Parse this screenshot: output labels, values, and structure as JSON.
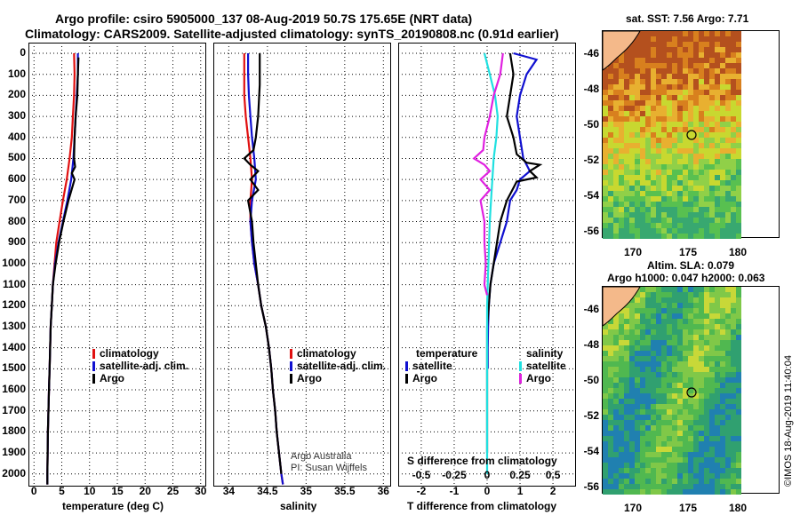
{
  "header": {
    "line1": "Argo profile: csiro 5905000_137 08-Aug-2019 50.7S 175.65E (NRT data)",
    "line2": "Climatology: CARS2009. Satellite-adjusted climatology: synTS_20190808.nc (0.91d earlier)"
  },
  "colors": {
    "climatology": "#e01010",
    "satellite": "#1010d0",
    "argo": "#000000",
    "satellite_s": "#20e0e0",
    "argo_s": "#e020e0"
  },
  "legend_common": [
    "climatology",
    "satellite-adj. clim.",
    "Argo"
  ],
  "legend_diff": {
    "temp_title": "temperature",
    "sal_title": "salinity",
    "temp_items": [
      "satellite",
      "Argo"
    ],
    "sal_items": [
      "satellite",
      "Argo"
    ]
  },
  "credit": {
    "line1": "Argo Australia",
    "line2": "PI: Susan Wijffels"
  },
  "diff_top_label": "S difference from climatology",
  "stamp": "©IMOS 18-Aug-2019 11:40:04",
  "maps": {
    "sst_title": "sat. SST: 7.56 Argo: 7.71",
    "sla_title1": "Altim. SLA: 0.079",
    "sla_title2": "Argo h1000: 0.047 h2000: 0.063",
    "lat_ticks": [
      "-46",
      "-48",
      "-50",
      "-52",
      "-54",
      "-56"
    ],
    "lon_ticks": [
      "170",
      "175",
      "180"
    ]
  },
  "chart_data": [
    {
      "type": "line",
      "title": "",
      "xlabel": "temperature (deg C)",
      "ylabel": "",
      "xlim": [
        -1,
        31
      ],
      "ylim": [
        2060,
        0
      ],
      "x_ticks": [
        0,
        5,
        10,
        15,
        20,
        25,
        30
      ],
      "y_ticks": [
        0,
        100,
        200,
        300,
        400,
        500,
        600,
        700,
        800,
        900,
        1000,
        1100,
        1200,
        1300,
        1400,
        1500,
        1600,
        1700,
        1800,
        1900,
        2000
      ],
      "series": [
        {
          "name": "climatology",
          "points": [
            [
              7.2,
              0
            ],
            [
              7.3,
              100
            ],
            [
              7.2,
              200
            ],
            [
              7.0,
              300
            ],
            [
              6.8,
              400
            ],
            [
              6.4,
              500
            ],
            [
              5.9,
              600
            ],
            [
              5.2,
              700
            ],
            [
              4.6,
              800
            ],
            [
              4.0,
              900
            ],
            [
              3.7,
              1000
            ],
            [
              3.4,
              1100
            ],
            [
              3.2,
              1200
            ],
            [
              3.0,
              1300
            ],
            [
              2.9,
              1400
            ],
            [
              2.8,
              1500
            ],
            [
              2.7,
              1600
            ],
            [
              2.6,
              1700
            ],
            [
              2.5,
              1800
            ],
            [
              2.45,
              1900
            ],
            [
              2.4,
              2000
            ],
            [
              2.4,
              2050
            ]
          ]
        },
        {
          "name": "satellite-adj. clim.",
          "points": [
            [
              7.9,
              0
            ],
            [
              7.9,
              100
            ],
            [
              7.7,
              200
            ],
            [
              7.5,
              300
            ],
            [
              7.3,
              400
            ],
            [
              7.1,
              500
            ],
            [
              6.7,
              600
            ],
            [
              6.0,
              700
            ],
            [
              5.2,
              800
            ],
            [
              4.4,
              900
            ],
            [
              3.8,
              1000
            ],
            [
              3.4,
              1100
            ],
            [
              3.2,
              1200
            ],
            [
              3.0,
              1300
            ],
            [
              2.9,
              1400
            ],
            [
              2.8,
              1500
            ],
            [
              2.7,
              1600
            ],
            [
              2.6,
              1700
            ],
            [
              2.5,
              1800
            ],
            [
              2.45,
              1900
            ],
            [
              2.4,
              2000
            ],
            [
              2.4,
              2050
            ]
          ]
        },
        {
          "name": "Argo",
          "points": [
            [
              8.0,
              20
            ],
            [
              7.9,
              100
            ],
            [
              7.8,
              200
            ],
            [
              7.5,
              300
            ],
            [
              7.3,
              400
            ],
            [
              7.2,
              500
            ],
            [
              7.4,
              540
            ],
            [
              6.8,
              570
            ],
            [
              7.3,
              600
            ],
            [
              6.2,
              700
            ],
            [
              5.3,
              800
            ],
            [
              4.5,
              900
            ],
            [
              3.9,
              1000
            ],
            [
              3.4,
              1100
            ],
            [
              3.2,
              1200
            ],
            [
              3.0,
              1300
            ],
            [
              2.9,
              1400
            ],
            [
              2.8,
              1500
            ],
            [
              2.7,
              1600
            ],
            [
              2.6,
              1700
            ],
            [
              2.5,
              1800
            ],
            [
              2.45,
              1900
            ],
            [
              2.4,
              2000
            ],
            [
              2.4,
              2050
            ]
          ]
        }
      ]
    },
    {
      "type": "line",
      "title": "",
      "xlabel": "salinity",
      "ylabel": "",
      "xlim": [
        33.8,
        36.1
      ],
      "ylim": [
        2060,
        0
      ],
      "x_ticks": [
        34,
        34.5,
        35,
        35.5,
        36
      ],
      "series": [
        {
          "name": "climatology",
          "points": [
            [
              34.2,
              0
            ],
            [
              34.2,
              100
            ],
            [
              34.2,
              200
            ],
            [
              34.22,
              300
            ],
            [
              34.25,
              400
            ],
            [
              34.28,
              500
            ],
            [
              34.3,
              600
            ],
            [
              34.28,
              700
            ],
            [
              34.28,
              800
            ],
            [
              34.3,
              900
            ],
            [
              34.33,
              1000
            ],
            [
              34.38,
              1100
            ],
            [
              34.42,
              1200
            ],
            [
              34.48,
              1300
            ],
            [
              34.52,
              1400
            ],
            [
              34.55,
              1500
            ],
            [
              34.57,
              1600
            ],
            [
              34.6,
              1700
            ],
            [
              34.62,
              1800
            ],
            [
              34.65,
              1900
            ],
            [
              34.68,
              2000
            ],
            [
              34.7,
              2050
            ]
          ]
        },
        {
          "name": "satellite-adj. clim.",
          "points": [
            [
              34.25,
              0
            ],
            [
              34.25,
              100
            ],
            [
              34.26,
              200
            ],
            [
              34.28,
              300
            ],
            [
              34.3,
              400
            ],
            [
              34.33,
              500
            ],
            [
              34.35,
              600
            ],
            [
              34.3,
              700
            ],
            [
              34.28,
              800
            ],
            [
              34.3,
              900
            ],
            [
              34.33,
              1000
            ],
            [
              34.38,
              1100
            ],
            [
              34.42,
              1200
            ],
            [
              34.48,
              1300
            ],
            [
              34.52,
              1400
            ],
            [
              34.55,
              1500
            ],
            [
              34.57,
              1600
            ],
            [
              34.6,
              1700
            ],
            [
              34.62,
              1800
            ],
            [
              34.65,
              1900
            ],
            [
              34.68,
              2000
            ],
            [
              34.7,
              2050
            ]
          ]
        },
        {
          "name": "Argo",
          "points": [
            [
              34.4,
              0
            ],
            [
              34.4,
              150
            ],
            [
              34.38,
              300
            ],
            [
              34.35,
              400
            ],
            [
              34.32,
              460
            ],
            [
              34.2,
              500
            ],
            [
              34.28,
              530
            ],
            [
              34.38,
              560
            ],
            [
              34.28,
              600
            ],
            [
              34.38,
              650
            ],
            [
              34.25,
              700
            ],
            [
              34.3,
              800
            ],
            [
              34.32,
              900
            ],
            [
              34.35,
              1000
            ],
            [
              34.38,
              1100
            ],
            [
              34.42,
              1200
            ],
            [
              34.48,
              1300
            ],
            [
              34.52,
              1400
            ],
            [
              34.55,
              1500
            ],
            [
              34.57,
              1600
            ],
            [
              34.6,
              1700
            ],
            [
              34.62,
              1800
            ],
            [
              34.65,
              1900
            ],
            [
              34.68,
              2000
            ]
          ]
        }
      ]
    },
    {
      "type": "line",
      "title": "",
      "xlabel": "T difference from climatology",
      "ylabel": "",
      "xlim": [
        -2.7,
        2.7
      ],
      "ylim": [
        2060,
        0
      ],
      "x_ticks": [
        -2,
        -1,
        0,
        1,
        2
      ],
      "s_xlim": [
        -0.675,
        0.675
      ],
      "s_ticks": [
        -0.5,
        -0.25,
        0,
        0.25,
        0.5
      ],
      "s_tick_labels": [
        "-0.5",
        "-0.25",
        "0",
        "0.25",
        "0.5"
      ],
      "series": [
        {
          "name": "T satellite",
          "points": [
            [
              0.8,
              0
            ],
            [
              1.5,
              30
            ],
            [
              1.2,
              100
            ],
            [
              1.0,
              200
            ],
            [
              0.9,
              300
            ],
            [
              1.0,
              400
            ],
            [
              1.1,
              500
            ],
            [
              1.3,
              560
            ],
            [
              1.0,
              600
            ],
            [
              0.9,
              650
            ],
            [
              0.7,
              700
            ],
            [
              0.6,
              800
            ],
            [
              0.4,
              900
            ],
            [
              0.2,
              1000
            ],
            [
              0.1,
              1100
            ],
            [
              0.05,
              1200
            ],
            [
              0.03,
              1300
            ],
            [
              0.02,
              1400
            ],
            [
              0.02,
              1500
            ]
          ]
        },
        {
          "name": "T Argo",
          "points": [
            [
              0.7,
              0
            ],
            [
              0.8,
              100
            ],
            [
              0.7,
              200
            ],
            [
              0.6,
              300
            ],
            [
              0.8,
              400
            ],
            [
              0.9,
              480
            ],
            [
              1.2,
              520
            ],
            [
              1.6,
              530
            ],
            [
              1.3,
              560
            ],
            [
              1.5,
              590
            ],
            [
              0.9,
              610
            ],
            [
              0.8,
              640
            ],
            [
              0.6,
              700
            ],
            [
              0.4,
              800
            ],
            [
              0.3,
              900
            ],
            [
              0.2,
              1000
            ],
            [
              0.1,
              1100
            ],
            [
              0.05,
              1200
            ],
            [
              0.0,
              1300
            ],
            [
              0.0,
              1400
            ],
            [
              0.0,
              1500
            ],
            [
              0.0,
              1600
            ],
            [
              0.0,
              1700
            ],
            [
              0.0,
              1800
            ],
            [
              0.0,
              1900
            ]
          ]
        },
        {
          "name": "S satellite",
          "points": [
            [
              -0.02,
              0
            ],
            [
              0.02,
              100
            ],
            [
              0.06,
              200
            ],
            [
              0.08,
              300
            ],
            [
              0.07,
              400
            ],
            [
              0.05,
              500
            ],
            [
              0.04,
              600
            ],
            [
              0.03,
              700
            ],
            [
              0.02,
              800
            ],
            [
              0.015,
              900
            ],
            [
              0.01,
              1000
            ],
            [
              0.005,
              1100
            ],
            [
              0.0,
              1200
            ],
            [
              0.0,
              1400
            ],
            [
              0.0,
              1600
            ],
            [
              0.0,
              1800
            ],
            [
              0.0,
              2000
            ]
          ]
        },
        {
          "name": "S Argo",
          "points": [
            [
              0.12,
              0
            ],
            [
              0.1,
              100
            ],
            [
              0.05,
              200
            ],
            [
              0.02,
              300
            ],
            [
              -0.02,
              400
            ],
            [
              -0.03,
              460
            ],
            [
              -0.1,
              500
            ],
            [
              -0.02,
              530
            ],
            [
              0.02,
              560
            ],
            [
              -0.05,
              600
            ],
            [
              0.02,
              650
            ],
            [
              -0.05,
              700
            ],
            [
              -0.02,
              800
            ],
            [
              -0.02,
              900
            ],
            [
              -0.01,
              1000
            ],
            [
              -0.02,
              1100
            ],
            [
              0.0,
              1150
            ]
          ]
        }
      ]
    }
  ]
}
